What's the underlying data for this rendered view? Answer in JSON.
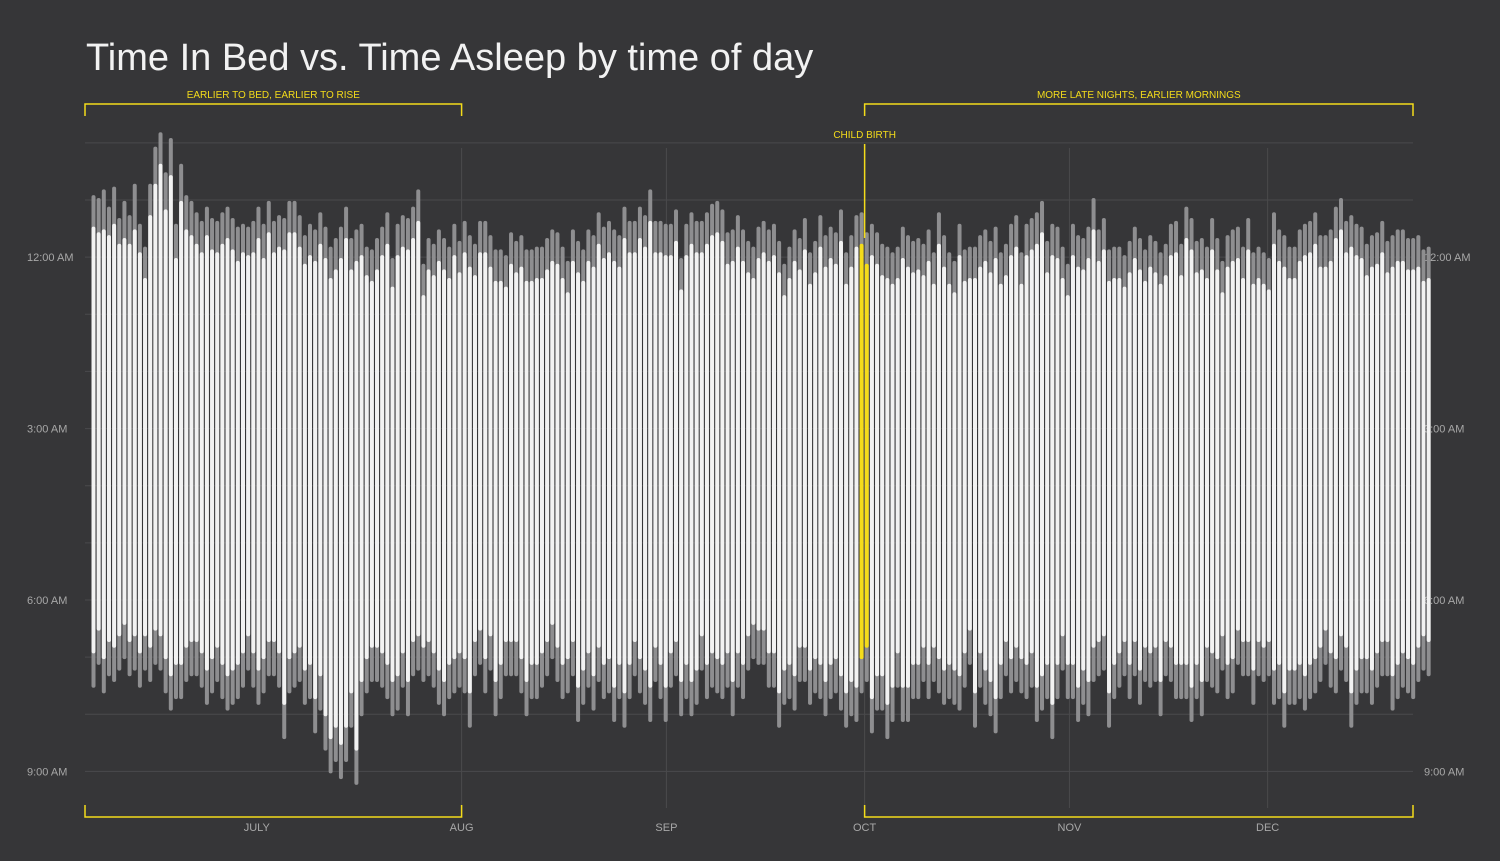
{
  "chart_data": {
    "type": "bar",
    "title": "Time In Bed vs. Time Asleep by time of day",
    "y_ticks": [
      "12:00 AM",
      "3:00 AM",
      "6:00 AM",
      "9:00 AM"
    ],
    "x_ticks": [
      "JULY",
      "AUG",
      "SEP",
      "OCT",
      "NOV",
      "DEC"
    ],
    "x_tick_days": [
      15,
      46,
      77,
      107,
      138,
      168
    ],
    "day_range": [
      -11,
      190
    ],
    "hour_range": [
      -2.4,
      9.5
    ],
    "grid": true,
    "legend": "none",
    "highlight_day": 107,
    "colors": {
      "background": "#363638",
      "in_bed": "#8e8e90",
      "asleep": "#f2f2f2",
      "highlight": "#f4dc1a",
      "annotation": "#f4dc1a",
      "grid": "#4a4a4c"
    },
    "annotations": [
      {
        "label": "EARLIER TO BED, EARLIER TO RISE",
        "day_start": -11,
        "day_end": 46
      },
      {
        "label": "MORE LATE NIGHTS, EARLIER MORNINGS",
        "day_start": 107,
        "day_end": 190
      },
      {
        "label": "CHILD BIRTH",
        "day": 107
      }
    ],
    "series": [
      {
        "name": "Time In Bed",
        "bed_start": [
          -1.05,
          -1.0,
          -1.15,
          -0.85,
          -1.2,
          -0.65,
          -0.95,
          -0.7,
          -1.25,
          -0.55,
          -0.15,
          -1.25,
          -1.9,
          -2.15,
          -1.45,
          -2.05,
          -0.55,
          -1.6,
          -1.05,
          -0.95,
          -0.75,
          -0.6,
          -0.85,
          -0.65,
          -0.6,
          -0.75,
          -0.85,
          -0.65,
          -0.5,
          -0.55,
          -0.5,
          -0.6,
          -0.85,
          -0.55,
          -0.95,
          -0.6,
          -0.7,
          -0.65,
          -0.95,
          -0.95,
          -0.7,
          -0.35,
          -0.55,
          -0.45,
          -0.75,
          -0.5,
          -0.15,
          -0.3,
          -0.5,
          -0.85,
          -0.3,
          -0.45,
          -0.55,
          -0.15,
          -0.1,
          -0.3,
          -0.5,
          -0.75,
          0.05,
          -0.55,
          -0.7,
          -0.65,
          -0.85,
          -1.15,
          0.15,
          -0.3,
          -0.2,
          -0.45,
          -0.3,
          -0.15,
          -0.55,
          -0.25,
          -0.6,
          -0.35,
          -0.2,
          -0.6,
          -0.6,
          -0.35,
          -0.1,
          -0.1,
          0.0,
          -0.4,
          -0.25,
          -0.35,
          -0.1,
          -0.1,
          -0.15,
          -0.15,
          -0.3,
          -0.45,
          -0.4,
          -0.15,
          0.1,
          -0.45,
          -0.25,
          -0.1,
          -0.45,
          -0.35,
          -0.75,
          -0.5,
          -0.6,
          -0.45,
          -0.35,
          -0.85,
          -0.6,
          -0.6,
          -0.85,
          -0.7,
          -1.15,
          -0.6,
          -0.6,
          -0.55,
          -0.55,
          -0.8,
          0.05,
          -0.55,
          -0.75,
          -0.6,
          -0.6,
          -0.75,
          -0.9,
          -0.95,
          -0.8,
          -0.4,
          -0.45,
          -0.7,
          -0.45,
          -0.25,
          -0.15,
          -0.5,
          -0.6,
          -0.45,
          -0.55,
          -0.25,
          0.15,
          -0.15,
          -0.45,
          -0.3,
          -0.65,
          -0.05,
          -0.25,
          -0.7,
          -0.35,
          -0.5,
          -0.4,
          -0.8,
          -0.05,
          -0.35,
          -0.7,
          -0.75,
          -0.4,
          -0.55,
          -0.4,
          -0.2,
          -0.15,
          -0.05,
          -0.15,
          -0.5,
          -0.35,
          -0.25,
          -0.3,
          -0.2,
          -0.45,
          -0.05,
          -0.75,
          -0.35,
          -0.05,
          0.1,
          -0.55,
          -0.1,
          -0.15,
          -0.15,
          -0.35,
          -0.45,
          -0.25,
          -0.5,
          -0.05,
          -0.2,
          -0.55,
          -0.7,
          -0.05,
          -0.55,
          -0.65,
          -0.75,
          -0.95,
          -0.25,
          -0.55,
          -0.5,
          -0.15,
          0.15,
          -0.55,
          -0.35,
          -0.3,
          -0.5,
          -1.0,
          -0.45,
          -0.65,
          -0.1,
          -0.15,
          -0.15,
          0.0,
          -0.25,
          -0.5,
          -0.3,
          -0.1,
          -0.35,
          -0.25,
          -0.05,
          -0.2,
          -0.55,
          -0.6,
          -0.2,
          -0.85,
          -0.65,
          -0.25,
          -0.3,
          -0.15,
          -0.65,
          -0.3,
          0.1,
          -0.35,
          -0.45,
          -0.5,
          -0.15,
          -0.65,
          -0.05,
          -0.15,
          -0.05,
          0.05,
          -0.75,
          -0.45,
          -0.35,
          -0.15,
          -0.15,
          -0.45,
          -0.55,
          -0.6,
          -0.75,
          -0.35,
          -0.35,
          -0.45,
          -0.85,
          -1.0,
          -0.6,
          -0.7,
          -0.55,
          -0.5,
          -0.2,
          -0.35,
          -0.4,
          -0.6,
          -0.25,
          -0.35,
          -0.45,
          -0.45,
          -0.3,
          -0.3,
          -0.35,
          -0.1,
          -0.15
        ],
        "bed_end": [
          7.5,
          7.1,
          7.6,
          7.3,
          7.4,
          7.2,
          7.0,
          7.3,
          7.2,
          7.5,
          7.2,
          7.4,
          7.1,
          7.2,
          7.6,
          7.9,
          7.7,
          7.7,
          7.4,
          7.3,
          7.3,
          7.5,
          7.8,
          7.6,
          7.4,
          7.7,
          7.9,
          7.8,
          7.7,
          7.5,
          7.2,
          7.5,
          7.8,
          7.6,
          7.3,
          7.3,
          7.5,
          8.4,
          7.6,
          7.5,
          7.4,
          7.8,
          7.7,
          8.3,
          7.9,
          8.6,
          9.0,
          8.8,
          9.1,
          8.8,
          8.2,
          9.2,
          8.0,
          7.6,
          7.4,
          7.4,
          7.5,
          7.7,
          8.0,
          7.9,
          7.5,
          8.0,
          7.3,
          7.2,
          7.4,
          7.3,
          7.5,
          7.8,
          8.0,
          7.7,
          7.6,
          7.5,
          7.6,
          8.2,
          7.3,
          7.1,
          7.6,
          7.2,
          8.0,
          7.7,
          7.3,
          7.3,
          7.3,
          7.6,
          8.0,
          7.7,
          7.7,
          7.5,
          7.3,
          7.0,
          7.4,
          7.7,
          7.6,
          7.3,
          8.1,
          7.8,
          7.5,
          7.9,
          7.4,
          7.7,
          7.6,
          8.1,
          7.7,
          8.2,
          7.7,
          7.3,
          7.6,
          7.8,
          8.1,
          7.4,
          7.7,
          8.1,
          7.5,
          7.3,
          8.0,
          7.7,
          8.0,
          7.8,
          7.2,
          7.7,
          7.5,
          7.6,
          7.7,
          7.5,
          8.0,
          7.5,
          7.7,
          7.2,
          7.0,
          7.1,
          7.1,
          7.5,
          7.5,
          8.2,
          7.8,
          7.7,
          7.9,
          7.4,
          7.4,
          7.8,
          7.6,
          7.7,
          8.0,
          7.7,
          7.6,
          7.9,
          8.2,
          8.0,
          8.1,
          7.6,
          7.4,
          8.3,
          7.9,
          7.9,
          8.4,
          8.1,
          7.5,
          8.1,
          8.1,
          7.7,
          7.7,
          7.4,
          7.7,
          7.4,
          7.6,
          7.8,
          7.7,
          7.8,
          7.9,
          7.5,
          7.1,
          8.2,
          7.5,
          7.8,
          8.0,
          8.3,
          7.7,
          7.3,
          7.6,
          7.4,
          7.6,
          7.7,
          7.5,
          8.1,
          7.9,
          7.7,
          8.4,
          7.7,
          7.2,
          7.7,
          7.7,
          8.1,
          7.8,
          8.0,
          7.4,
          7.3,
          7.2,
          8.2,
          7.7,
          7.5,
          7.3,
          7.7,
          7.3,
          7.8,
          7.4,
          7.5,
          7.4,
          8.0,
          7.3,
          7.4,
          7.7,
          7.7,
          7.7,
          8.1,
          7.7,
          8.0,
          7.4,
          7.5,
          7.6,
          7.2,
          7.7,
          7.6,
          7.1,
          7.3,
          7.3,
          7.8,
          7.3,
          7.4,
          7.3,
          7.8,
          7.7,
          8.2,
          7.8,
          7.8,
          7.7,
          7.9,
          7.7,
          7.6,
          7.4,
          7.1,
          7.5,
          7.6,
          7.2,
          7.4,
          8.2,
          7.8,
          7.6,
          7.6,
          7.8,
          7.5,
          7.3,
          7.3,
          7.9,
          7.7,
          7.5,
          7.6,
          7.7,
          7.4,
          7.2,
          7.3,
          7.6,
          7.1,
          7.4
        ],
        "values": null
      },
      {
        "name": "Time Asleep",
        "sleep_start": [
          -0.5,
          -0.4,
          -0.45,
          -0.35,
          -0.55,
          -0.2,
          -0.3,
          -0.2,
          -0.45,
          -0.05,
          0.4,
          -0.7,
          -1.25,
          -1.6,
          -0.8,
          -1.4,
          0.05,
          -0.95,
          -0.45,
          -0.35,
          -0.2,
          -0.05,
          -0.35,
          -0.1,
          -0.05,
          -0.2,
          -0.3,
          -0.1,
          0.1,
          -0.05,
          0.0,
          -0.05,
          -0.3,
          0.05,
          -0.4,
          -0.05,
          -0.15,
          -0.1,
          -0.4,
          -0.4,
          -0.15,
          0.15,
          0.0,
          0.1,
          -0.2,
          0.05,
          0.4,
          0.25,
          0.05,
          -0.3,
          0.25,
          0.1,
          0.0,
          0.35,
          0.45,
          0.25,
          0.0,
          -0.2,
          0.55,
          0.0,
          -0.15,
          -0.1,
          -0.3,
          -0.6,
          0.7,
          0.25,
          0.35,
          0.1,
          0.25,
          0.4,
          0.0,
          0.3,
          -0.05,
          0.2,
          0.35,
          -0.05,
          -0.05,
          0.2,
          0.45,
          0.45,
          0.55,
          0.15,
          0.3,
          0.2,
          0.45,
          0.45,
          0.4,
          0.4,
          0.25,
          0.1,
          0.15,
          0.4,
          0.65,
          0.1,
          0.3,
          0.45,
          0.1,
          0.2,
          -0.2,
          0.05,
          -0.05,
          0.1,
          0.2,
          -0.3,
          -0.05,
          -0.05,
          -0.3,
          -0.15,
          -0.6,
          -0.05,
          -0.05,
          0.0,
          0.0,
          -0.25,
          0.6,
          0.0,
          -0.2,
          -0.05,
          -0.05,
          -0.2,
          -0.35,
          -0.4,
          -0.25,
          0.15,
          0.1,
          -0.15,
          0.1,
          0.3,
          0.4,
          0.05,
          -0.05,
          0.1,
          0.0,
          0.3,
          0.7,
          0.4,
          0.1,
          0.25,
          -0.1,
          0.5,
          0.3,
          -0.15,
          0.2,
          0.05,
          0.15,
          -0.25,
          0.5,
          0.2,
          -0.15,
          -0.2,
          0.15,
          0.0,
          0.15,
          0.35,
          0.4,
          0.5,
          0.4,
          0.05,
          0.2,
          0.3,
          0.25,
          0.35,
          0.1,
          0.5,
          -0.2,
          0.2,
          0.5,
          0.65,
          0.0,
          0.45,
          0.4,
          0.4,
          0.2,
          0.1,
          0.3,
          0.05,
          0.5,
          0.35,
          0.0,
          -0.15,
          0.5,
          0.0,
          -0.1,
          -0.2,
          -0.4,
          0.3,
          0.0,
          0.05,
          0.4,
          0.7,
          0.0,
          0.2,
          0.25,
          0.05,
          -0.45,
          0.1,
          -0.1,
          0.45,
          0.4,
          0.4,
          0.55,
          0.3,
          0.05,
          0.25,
          0.45,
          0.2,
          0.3,
          0.5,
          0.35,
          0.0,
          -0.05,
          0.35,
          -0.3,
          -0.1,
          0.3,
          0.25,
          0.4,
          -0.1,
          0.25,
          0.65,
          0.2,
          0.1,
          0.05,
          0.4,
          -0.1,
          0.5,
          0.4,
          0.5,
          0.6,
          -0.2,
          0.1,
          0.2,
          0.4,
          0.4,
          0.1,
          0.0,
          -0.05,
          -0.2,
          0.2,
          0.2,
          0.1,
          -0.3,
          -0.45,
          -0.05,
          -0.15,
          0.0,
          0.05,
          0.35,
          0.2,
          0.15,
          -0.05,
          0.3,
          0.2,
          0.1,
          0.1,
          0.25,
          0.25,
          0.2,
          0.45,
          0.4
        ],
        "sleep_end": [
          6.9,
          6.5,
          7.0,
          6.7,
          6.8,
          6.6,
          6.4,
          6.7,
          6.6,
          6.9,
          6.6,
          6.8,
          6.5,
          6.6,
          7.0,
          7.3,
          7.1,
          7.1,
          6.8,
          6.7,
          6.7,
          6.9,
          7.2,
          7.0,
          6.8,
          7.1,
          7.3,
          7.2,
          7.1,
          6.9,
          6.6,
          6.9,
          7.2,
          7.0,
          6.7,
          6.7,
          6.9,
          7.8,
          7.0,
          6.9,
          6.8,
          7.2,
          7.1,
          7.7,
          7.3,
          8.0,
          8.4,
          8.2,
          8.5,
          8.2,
          7.6,
          8.6,
          7.4,
          7.0,
          6.8,
          6.8,
          6.9,
          7.1,
          7.4,
          7.3,
          6.9,
          7.4,
          6.7,
          6.6,
          6.8,
          6.7,
          6.9,
          7.2,
          7.4,
          7.1,
          7.0,
          6.9,
          7.0,
          7.6,
          6.7,
          6.5,
          7.0,
          6.6,
          7.4,
          7.1,
          6.7,
          6.7,
          6.7,
          7.0,
          7.4,
          7.1,
          7.1,
          6.9,
          6.7,
          6.4,
          6.8,
          7.1,
          7.0,
          6.7,
          7.5,
          7.2,
          6.9,
          7.3,
          6.8,
          7.1,
          7.0,
          7.5,
          7.1,
          7.6,
          7.1,
          6.7,
          7.0,
          7.2,
          7.5,
          6.8,
          7.1,
          7.5,
          6.9,
          6.7,
          7.4,
          7.1,
          7.4,
          7.2,
          6.6,
          7.1,
          6.9,
          7.0,
          7.1,
          6.9,
          7.4,
          6.9,
          7.1,
          6.6,
          6.4,
          6.5,
          6.5,
          6.9,
          6.9,
          7.6,
          7.2,
          7.1,
          7.3,
          6.8,
          6.8,
          7.2,
          7.0,
          7.1,
          7.4,
          7.1,
          7.0,
          7.3,
          7.6,
          7.4,
          7.5,
          7.0,
          6.8,
          7.7,
          7.3,
          7.3,
          7.8,
          7.5,
          6.9,
          7.5,
          7.5,
          7.1,
          7.1,
          6.8,
          7.1,
          6.8,
          7.0,
          7.2,
          7.1,
          7.2,
          7.3,
          6.9,
          6.5,
          7.6,
          6.9,
          7.2,
          7.4,
          7.7,
          7.1,
          6.7,
          7.0,
          6.8,
          7.0,
          7.1,
          6.9,
          7.5,
          7.3,
          7.1,
          7.8,
          7.1,
          6.6,
          7.1,
          7.1,
          7.5,
          7.2,
          7.4,
          6.8,
          6.7,
          6.6,
          7.6,
          7.1,
          6.9,
          6.7,
          7.1,
          6.7,
          7.2,
          6.8,
          6.9,
          6.8,
          7.4,
          6.7,
          6.8,
          7.1,
          7.1,
          7.1,
          7.5,
          7.1,
          7.4,
          6.8,
          6.9,
          7.0,
          6.6,
          7.1,
          7.0,
          6.5,
          6.7,
          6.7,
          7.2,
          6.7,
          6.8,
          6.7,
          7.2,
          7.1,
          7.6,
          7.2,
          7.2,
          7.1,
          7.3,
          7.1,
          7.0,
          6.8,
          6.5,
          6.9,
          7.0,
          6.6,
          6.8,
          7.6,
          7.2,
          7.0,
          7.0,
          7.2,
          6.9,
          6.7,
          6.7,
          7.3,
          7.1,
          6.9,
          7.0,
          7.1,
          6.8,
          6.6,
          6.7,
          7.0,
          6.5,
          6.8
        ],
        "values": null
      }
    ]
  }
}
